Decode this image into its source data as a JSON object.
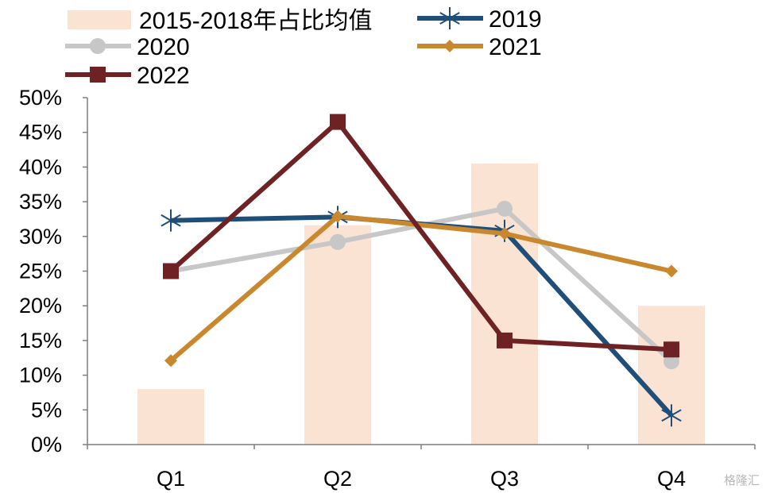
{
  "chart_data": {
    "type": "bar+line",
    "categories": [
      "Q1",
      "Q2",
      "Q3",
      "Q4"
    ],
    "ylim": [
      0,
      50
    ],
    "yticks": [
      "0%",
      "5%",
      "10%",
      "15%",
      "20%",
      "25%",
      "30%",
      "35%",
      "40%",
      "45%",
      "50%"
    ],
    "bar_series": {
      "name": "2015-2018年占比均值",
      "values": [
        8,
        31.6,
        40.5,
        20
      ],
      "color": "#fbe3d4"
    },
    "series": [
      {
        "name": "2019",
        "values": [
          32.3,
          32.8,
          30.8,
          4.2
        ],
        "color": "#1f4e79",
        "marker": "star"
      },
      {
        "name": "2020",
        "values": [
          25,
          29.2,
          34,
          12
        ],
        "color": "#c7c7c7",
        "marker": "circle"
      },
      {
        "name": "2021",
        "values": [
          12.1,
          32.9,
          30.4,
          25
        ],
        "color": "#c9882e",
        "marker": "diamond"
      },
      {
        "name": "2022",
        "values": [
          25,
          46.5,
          15,
          13.7
        ],
        "color": "#6e2224",
        "marker": "square"
      }
    ],
    "legend_position": "top"
  },
  "watermark": "格隆汇"
}
